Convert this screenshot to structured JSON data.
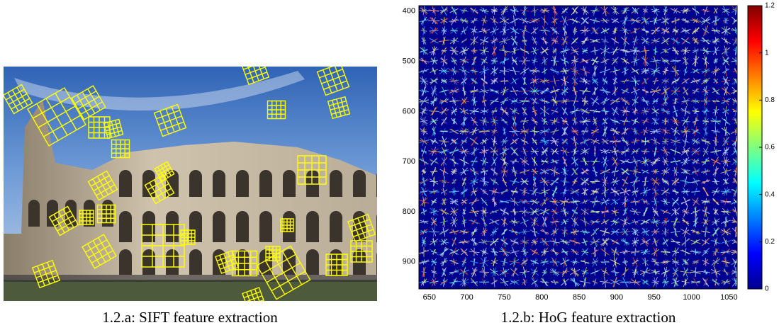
{
  "captions": [
    "1.2.a: SIFT feature extraction",
    "1.2.b: HoG feature extraction"
  ],
  "chart_data": {
    "type": "heatmap",
    "xlim": [
      636,
      1061
    ],
    "xticks": [
      650,
      700,
      750,
      800,
      850,
      900,
      950,
      1000,
      1050
    ],
    "ylim": [
      954,
      389
    ],
    "yticks": [
      400,
      500,
      600,
      700,
      800,
      900
    ],
    "clim": [
      0,
      1.2
    ],
    "cticks": [
      0,
      0.2,
      0.4,
      0.6,
      0.8,
      1,
      1.2
    ]
  }
}
